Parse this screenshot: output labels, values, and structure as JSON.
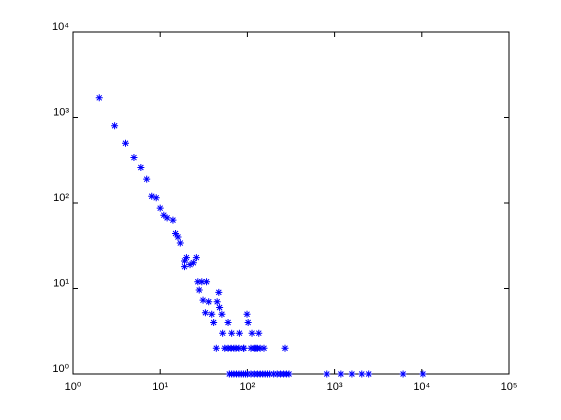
{
  "chart_data": {
    "type": "scatter",
    "log_x": true,
    "log_y": true,
    "marker": "asterisk",
    "color": "#0000ff",
    "x": [
      2,
      3,
      4,
      5,
      6,
      7,
      8,
      9,
      10,
      11,
      12,
      14,
      15,
      16,
      17,
      19,
      19,
      20,
      22,
      24,
      26,
      27,
      28,
      30,
      31,
      33,
      34,
      36,
      39,
      41,
      45,
      47,
      44,
      48,
      51,
      52,
      55,
      60,
      66,
      70,
      74,
      81,
      91,
      99,
      102,
      113,
      125,
      135,
      155,
      270,
      60,
      65,
      70,
      80,
      90,
      110,
      120,
      130,
      140,
      62,
      66,
      75,
      80,
      85,
      90,
      95,
      100,
      110,
      120,
      130,
      140,
      150,
      160,
      170,
      180,
      200,
      220,
      240,
      260,
      280,
      300,
      813,
      1180,
      1580,
      2050,
      2460,
      6100,
      10300
    ],
    "y": [
      1700,
      800,
      500,
      340,
      260,
      190,
      120,
      115,
      87,
      72,
      67,
      63,
      44,
      40,
      34,
      21,
      18,
      23,
      19,
      20,
      23,
      12,
      9.6,
      12,
      7.3,
      5.2,
      12,
      7,
      5,
      4,
      7,
      9,
      2,
      6,
      5,
      3,
      2,
      4,
      3,
      1,
      2,
      3,
      2,
      5,
      4,
      3,
      2,
      3,
      2,
      2,
      2,
      2,
      2,
      2,
      2,
      2,
      2,
      2,
      2,
      1,
      1,
      1,
      1,
      1,
      1,
      1,
      1,
      1,
      1,
      1,
      1,
      1,
      1,
      1,
      1,
      1,
      1,
      1,
      1,
      1,
      1,
      1,
      1,
      1,
      1,
      1,
      1,
      1
    ],
    "xlim": [
      1,
      100000
    ],
    "ylim": [
      1,
      10000
    ],
    "xticks": [
      {
        "value": 1,
        "label": "10⁰"
      },
      {
        "value": 10,
        "label": "10¹"
      },
      {
        "value": 100,
        "label": "10²"
      },
      {
        "value": 1000,
        "label": "10³"
      },
      {
        "value": 10000,
        "label": "10⁴"
      },
      {
        "value": 100000,
        "label": "10⁵"
      }
    ],
    "yticks": [
      {
        "value": 1,
        "label": "10⁰"
      },
      {
        "value": 10,
        "label": "10¹"
      },
      {
        "value": 100,
        "label": "10²"
      },
      {
        "value": 1000,
        "label": "10³"
      },
      {
        "value": 10000,
        "label": "10⁴"
      }
    ]
  }
}
